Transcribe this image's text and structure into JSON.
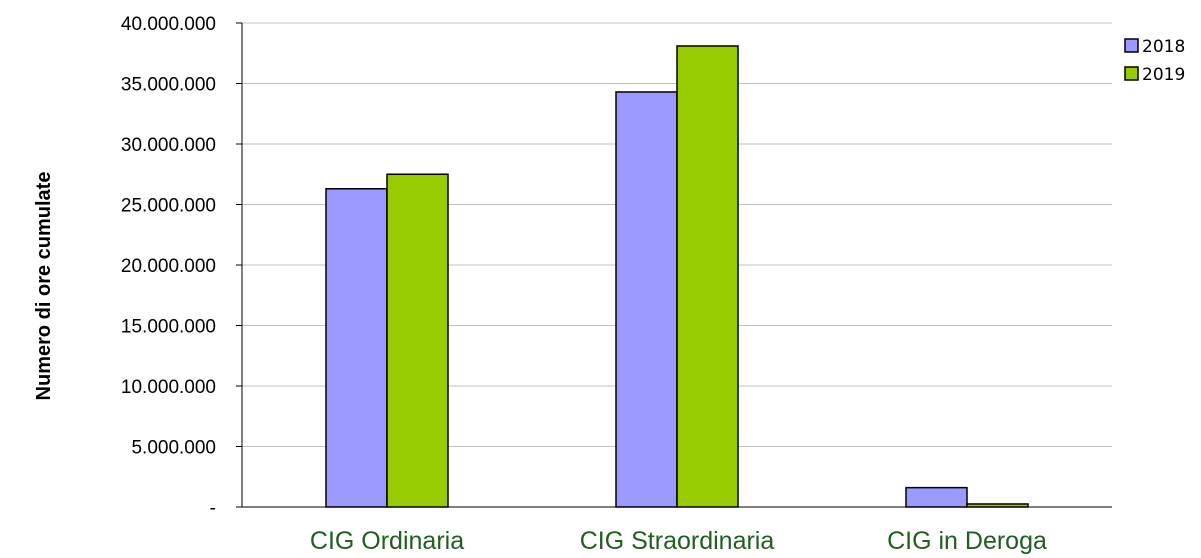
{
  "chart_data": {
    "type": "bar",
    "title": "",
    "xlabel": "",
    "ylabel": "Numero di ore cumulate",
    "categories": [
      "CIG Ordinaria",
      "CIG Straordinaria",
      "CIG in Deroga"
    ],
    "series": [
      {
        "name": "2018",
        "color": "#9999ff",
        "values": [
          26300000,
          34300000,
          1600000
        ]
      },
      {
        "name": "2019",
        "color": "#99cc00",
        "values": [
          27500000,
          38100000,
          250000
        ]
      }
    ],
    "ylim": [
      0,
      40000000
    ],
    "yticks": [
      {
        "value": 0,
        "label": "-"
      },
      {
        "value": 5000000,
        "label": "5.000.000"
      },
      {
        "value": 10000000,
        "label": "10.000.000"
      },
      {
        "value": 15000000,
        "label": "15.000.000"
      },
      {
        "value": 20000000,
        "label": "20.000.000"
      },
      {
        "value": 25000000,
        "label": "25.000.000"
      },
      {
        "value": 30000000,
        "label": "30.000.000"
      },
      {
        "value": 35000000,
        "label": "35.000.000"
      },
      {
        "value": 40000000,
        "label": "40.000.000"
      }
    ],
    "grid": true,
    "legend": "top-right"
  }
}
